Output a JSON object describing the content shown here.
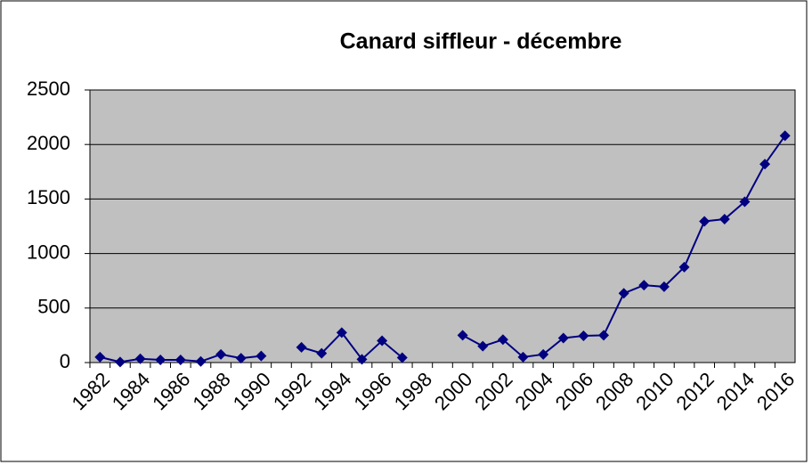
{
  "chart_data": {
    "type": "line",
    "title": "Canard siffleur - décembre",
    "categories": [
      "1982",
      null,
      "1984",
      null,
      "1986",
      null,
      "1988",
      null,
      "1990",
      null,
      "1992",
      null,
      "1994",
      null,
      "1996",
      null,
      "1998",
      null,
      "2000",
      null,
      "2002",
      null,
      "2004",
      null,
      "2006",
      null,
      "2008",
      null,
      "2010",
      null,
      "2012",
      null,
      "2014",
      null,
      "2016"
    ],
    "series": [
      {
        "name": "Canard siffleur",
        "color": "#000080",
        "values": [
          50,
          5,
          35,
          25,
          25,
          10,
          75,
          40,
          60,
          null,
          140,
          85,
          275,
          30,
          200,
          45,
          null,
          null,
          250,
          150,
          210,
          50,
          75,
          225,
          245,
          250,
          635,
          710,
          695,
          875,
          1295,
          1315,
          1475,
          1820,
          2080
        ]
      }
    ],
    "ylim": [
      0,
      2500
    ],
    "yticks": [
      0,
      500,
      1000,
      1500,
      2000,
      2500
    ],
    "grid": true,
    "plot_background": "#c0c0c0"
  }
}
